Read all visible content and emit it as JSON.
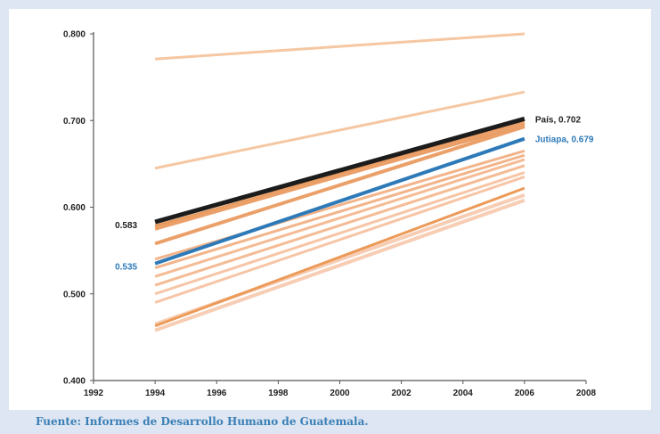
{
  "source_note": "Fuente: Informes de Desarrollo Humano de Guatemala.",
  "chart_data": {
    "type": "line",
    "title": "",
    "xlabel": "",
    "ylabel": "",
    "x": [
      1994,
      2006
    ],
    "xlim": [
      1992,
      2008
    ],
    "ylim": [
      0.4,
      0.8
    ],
    "xticks": [
      "1992",
      "1994",
      "1996",
      "1998",
      "2000",
      "2002",
      "2004",
      "2006",
      "2008"
    ],
    "yticks": [
      "0.400",
      "0.500",
      "0.600",
      "0.700",
      "0.800"
    ],
    "grid": false,
    "series": [
      {
        "values": [
          0.771,
          0.8
        ],
        "color": "#f5c7a2",
        "width": 3
      },
      {
        "values": [
          0.645,
          0.733
        ],
        "color": "#f5c7a2",
        "width": 3
      },
      {
        "values": [
          0.583,
          0.698
        ],
        "color": "#e79a5c",
        "width": 4
      },
      {
        "values": [
          0.578,
          0.695
        ],
        "color": "#e79a5c",
        "width": 4
      },
      {
        "values": [
          0.575,
          0.697
        ],
        "color": "#eba06a",
        "width": 4
      },
      {
        "values": [
          0.558,
          0.693
        ],
        "color": "#eba06a",
        "width": 4
      },
      {
        "values": [
          0.54,
          0.665
        ],
        "color": "#f2b48a",
        "width": 3
      },
      {
        "values": [
          0.53,
          0.66
        ],
        "color": "#f2b48a",
        "width": 3
      },
      {
        "values": [
          0.52,
          0.655
        ],
        "color": "#f4bb94",
        "width": 3
      },
      {
        "values": [
          0.51,
          0.648
        ],
        "color": "#f4bb94",
        "width": 3
      },
      {
        "values": [
          0.5,
          0.64
        ],
        "color": "#f7c5a6",
        "width": 3
      },
      {
        "values": [
          0.49,
          0.635
        ],
        "color": "#f7c5a6",
        "width": 3
      },
      {
        "values": [
          0.465,
          0.614
        ],
        "color": "#f7cdb4",
        "width": 4
      },
      {
        "values": [
          0.458,
          0.608
        ],
        "color": "#f7cdb4",
        "width": 4
      },
      {
        "values": [
          0.463,
          0.622
        ],
        "color": "#ec9a58",
        "width": 3
      },
      {
        "name": "Jutiapa",
        "values": [
          0.535,
          0.679
        ],
        "color": "#2e7ab8",
        "width": 4
      },
      {
        "name": "País",
        "values": [
          0.583,
          0.702
        ],
        "color": "#1c1c1c",
        "width": 5
      }
    ],
    "annotations": [
      {
        "text": "0.583",
        "x": 1994,
        "y": 0.583,
        "side": "left",
        "color": "#222222"
      },
      {
        "text": "0.535",
        "x": 1994,
        "y": 0.535,
        "side": "left",
        "color": "#2e7ab8"
      },
      {
        "text": "País, 0.702",
        "x": 2006,
        "y": 0.702,
        "side": "right",
        "color": "#222222"
      },
      {
        "text": "Jutiapa, 0.679",
        "x": 2006,
        "y": 0.679,
        "side": "right",
        "color": "#2e7ab8"
      }
    ]
  }
}
